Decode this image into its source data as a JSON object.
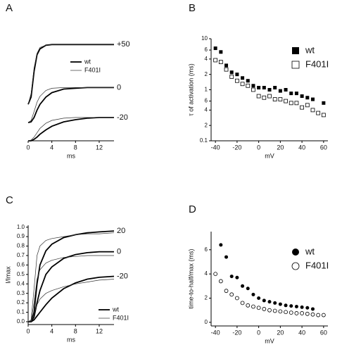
{
  "chart_data": [
    {
      "type": "line",
      "panel": "A",
      "xlabel": "ms",
      "x": [
        0,
        0.5,
        1,
        1.5,
        2,
        3,
        4,
        6,
        8,
        10,
        12,
        14.5
      ],
      "xlim": [
        0,
        14.5
      ],
      "xticks": [
        0,
        4,
        8,
        12
      ],
      "ylim": [
        0,
        140
      ],
      "series": [
        {
          "name": "wt",
          "style": "thick",
          "color": "#000000",
          "curves": [
            {
              "label": "+50",
              "values": [
                50,
                60,
                95,
                118,
                126,
                131,
                132,
                132,
                132,
                132,
                132,
                132
              ]
            },
            {
              "label": "0",
              "values": [
                25,
                26,
                32,
                42,
                50,
                60,
                66,
                71,
                72,
                73,
                73,
                73
              ]
            },
            {
              "label": "-20",
              "values": [
                0,
                0,
                2,
                5,
                9,
                15,
                20,
                26,
                29,
                31,
                32,
                32
              ]
            }
          ]
        },
        {
          "name": "F401I",
          "style": "thin",
          "color": "#333333",
          "curves": [
            {
              "values": [
                50,
                65,
                100,
                120,
                128,
                131,
                132,
                132,
                132,
                132,
                132,
                132
              ]
            },
            {
              "values": [
                25,
                28,
                40,
                53,
                61,
                69,
                72,
                73,
                73,
                73,
                73,
                73
              ]
            },
            {
              "values": [
                0,
                1,
                5,
                11,
                17,
                24,
                28,
                31,
                32,
                32,
                32,
                32
              ]
            }
          ]
        }
      ]
    },
    {
      "type": "scatter",
      "panel": "B",
      "xlabel": "mV",
      "ylabel": "τ of activation (ms)",
      "xlim": [
        -44,
        64
      ],
      "xticks": [
        -40,
        -20,
        0,
        20,
        40,
        60
      ],
      "ylim": [
        0.1,
        10
      ],
      "log_y": true,
      "yticks": [
        10,
        {
          "value": 6,
          "label": "6"
        },
        {
          "value": 4,
          "label": "4"
        },
        {
          "value": 2,
          "label": "2"
        },
        1,
        {
          "value": 0.6,
          "label": "6"
        },
        {
          "value": 0.4,
          "label": "4"
        },
        {
          "value": 0.2,
          "label": "2"
        },
        0.1
      ],
      "series": [
        {
          "name": "wt",
          "marker": "square",
          "fill": "filled",
          "color": "#000000",
          "x": [
            -40,
            -35,
            -30,
            -25,
            -20,
            -15,
            -10,
            -5,
            0,
            5,
            10,
            15,
            20,
            25,
            30,
            35,
            40,
            45,
            50,
            60
          ],
          "values": [
            6.5,
            5.5,
            3,
            2.2,
            2,
            1.7,
            1.5,
            1.2,
            1.1,
            1.1,
            1.0,
            1.1,
            0.95,
            1.0,
            0.85,
            0.85,
            0.75,
            0.7,
            0.65,
            0.55
          ]
        },
        {
          "name": "F401I",
          "marker": "square",
          "fill": "open",
          "color": "#000000",
          "x": [
            -40,
            -35,
            -30,
            -25,
            -20,
            -15,
            -10,
            -5,
            0,
            5,
            10,
            15,
            20,
            25,
            30,
            35,
            40,
            45,
            50,
            55,
            60
          ],
          "values": [
            3.8,
            3.5,
            2.5,
            1.8,
            1.5,
            1.3,
            1.2,
            1.0,
            0.75,
            0.7,
            0.75,
            0.65,
            0.65,
            0.6,
            0.55,
            0.55,
            0.45,
            0.5,
            0.4,
            0.35,
            0.32
          ]
        }
      ]
    },
    {
      "type": "line",
      "panel": "C",
      "xlabel": "ms",
      "ylabel": "I/Imax",
      "x": [
        0,
        0.5,
        1,
        1.5,
        2,
        3,
        4,
        6,
        8,
        10,
        12,
        14.5
      ],
      "xlim": [
        0,
        14.5
      ],
      "xticks": [
        0,
        4,
        8,
        12
      ],
      "ylim": [
        -0.03,
        1.02
      ],
      "yticks": [
        {
          "value": 0,
          "label": "0.0"
        },
        0.1,
        0.2,
        0.3,
        0.4,
        0.5,
        0.6,
        0.7,
        0.8,
        0.9,
        {
          "value": 1,
          "label": "1.0"
        }
      ],
      "series": [
        {
          "name": "wt",
          "style": "thick",
          "color": "#000000",
          "curves": [
            {
              "label": "20",
              "values": [
                0,
                0,
                0.1,
                0.4,
                0.6,
                0.75,
                0.82,
                0.89,
                0.92,
                0.94,
                0.95,
                0.96
              ]
            },
            {
              "label": "0",
              "values": [
                0,
                0,
                0.05,
                0.2,
                0.33,
                0.5,
                0.58,
                0.67,
                0.71,
                0.73,
                0.74,
                0.74
              ]
            },
            {
              "label": "-20",
              "values": [
                0,
                0,
                0.02,
                0.06,
                0.1,
                0.18,
                0.25,
                0.35,
                0.41,
                0.45,
                0.47,
                0.48
              ]
            }
          ]
        },
        {
          "name": "F401I",
          "style": "thin",
          "color": "#333333",
          "curves": [
            {
              "values": [
                0,
                0.02,
                0.35,
                0.7,
                0.8,
                0.86,
                0.88,
                0.9,
                0.92,
                0.93,
                0.93,
                0.94
              ]
            },
            {
              "values": [
                0,
                0.01,
                0.2,
                0.45,
                0.55,
                0.62,
                0.65,
                0.68,
                0.69,
                0.7,
                0.7,
                0.7
              ]
            },
            {
              "values": [
                0,
                0,
                0.08,
                0.18,
                0.24,
                0.3,
                0.33,
                0.37,
                0.4,
                0.42,
                0.44,
                0.45
              ]
            }
          ]
        }
      ]
    },
    {
      "type": "scatter",
      "panel": "D",
      "xlabel": "mV",
      "ylabel": "time-to-half/max (ms)",
      "xlim": [
        -44,
        64
      ],
      "xticks": [
        -40,
        -20,
        0,
        20,
        40,
        60
      ],
      "ylim": [
        -0.3,
        7.5
      ],
      "yticks": [
        0,
        2,
        4,
        6
      ],
      "series": [
        {
          "name": "wt",
          "marker": "circle",
          "fill": "filled",
          "color": "#000000",
          "x": [
            -35,
            -30,
            -25,
            -20,
            -15,
            -10,
            -5,
            0,
            5,
            10,
            15,
            20,
            25,
            30,
            35,
            40,
            45,
            50
          ],
          "values": [
            6.4,
            5.4,
            3.8,
            3.7,
            3.0,
            2.8,
            2.3,
            2.0,
            1.8,
            1.7,
            1.6,
            1.5,
            1.4,
            1.35,
            1.3,
            1.25,
            1.2,
            1.1
          ]
        },
        {
          "name": "F401I",
          "marker": "circle",
          "fill": "open",
          "color": "#000000",
          "x": [
            -40,
            -35,
            -30,
            -25,
            -20,
            -15,
            -10,
            -5,
            0,
            5,
            10,
            15,
            20,
            25,
            30,
            35,
            40,
            45,
            50,
            55,
            60
          ],
          "values": [
            4.0,
            3.4,
            2.6,
            2.3,
            2.0,
            1.6,
            1.4,
            1.3,
            1.2,
            1.1,
            1.0,
            0.95,
            0.9,
            0.85,
            0.8,
            0.75,
            0.75,
            0.7,
            0.65,
            0.6,
            0.6
          ]
        }
      ]
    }
  ]
}
